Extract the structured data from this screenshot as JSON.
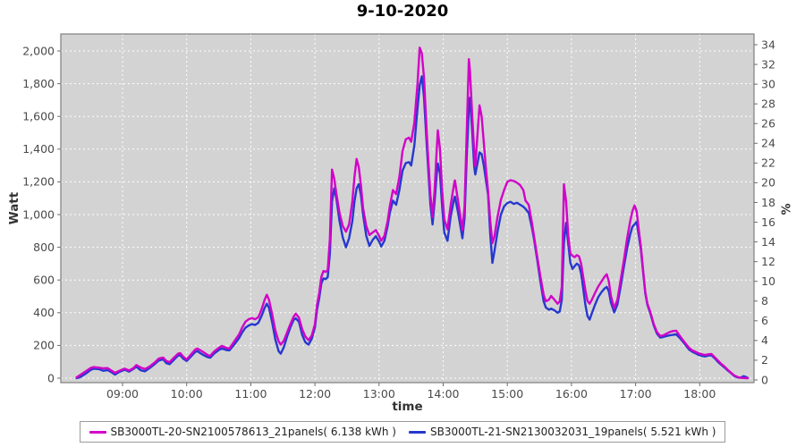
{
  "title": "9-10-2020",
  "axes": {
    "left": {
      "title": "Watt",
      "tick_labels": [
        "0",
        "200",
        "400",
        "600",
        "800",
        "1,000",
        "1,200",
        "1,400",
        "1,600",
        "1,800",
        "2,000"
      ],
      "tick_values": [
        0,
        200,
        400,
        600,
        800,
        1000,
        1200,
        1400,
        1600,
        1800,
        2000
      ]
    },
    "right": {
      "title": "%",
      "tick_labels": [
        "0",
        "2",
        "4",
        "6",
        "8",
        "10",
        "12",
        "14",
        "16",
        "18",
        "20",
        "22",
        "24",
        "26",
        "28",
        "30",
        "32",
        "34"
      ],
      "tick_values": [
        0,
        2,
        4,
        6,
        8,
        10,
        12,
        14,
        16,
        18,
        20,
        22,
        24,
        26,
        28,
        30,
        32,
        34
      ]
    },
    "bottom": {
      "title": "time",
      "tick_labels": [
        "09:00",
        "10:00",
        "11:00",
        "12:00",
        "13:00",
        "14:00",
        "15:00",
        "16:00",
        "17:00",
        "18:00"
      ],
      "tick_values_minutes": [
        540,
        600,
        660,
        720,
        780,
        840,
        900,
        960,
        1020,
        1080
      ]
    }
  },
  "legend": [
    {
      "label": "SB3000TL-20-SN2100578613_21panels( 6.138 kWh )",
      "color": "#d203c8"
    },
    {
      "label": "SB3000TL-21-SN2130032031_19panels( 5.521 kWh )",
      "color": "#2638cf"
    }
  ],
  "colors": {
    "plot_background": "#d3d3d3",
    "grid": "#ffffff",
    "plot_border": "#7f7f7f",
    "tick_label": "#4a4a4a",
    "series_1": "#d203c8",
    "series_2": "#2638cf"
  },
  "chart_data": {
    "type": "line",
    "title": "9-10-2020",
    "xlabel": "time",
    "ylabel": "Watt",
    "y2label": "%",
    "xlim_minutes": [
      482,
      1131
    ],
    "ylim": [
      0,
      2105
    ],
    "y2lim": [
      0,
      34
    ],
    "grid": true,
    "legend_position": "bottom",
    "x_unit": "minutes since midnight",
    "x": [
      497,
      500,
      505,
      510,
      513,
      518,
      522,
      526,
      530,
      533,
      537,
      542,
      546,
      550,
      553,
      557,
      561,
      565,
      570,
      574,
      578,
      581,
      584,
      588,
      592,
      594,
      597,
      600,
      604,
      608,
      610,
      613,
      616,
      620,
      622,
      626,
      630,
      633,
      637,
      640,
      645,
      649,
      652,
      655,
      658,
      661,
      664,
      667,
      670,
      673,
      675,
      677,
      680,
      683,
      686,
      688,
      691,
      694,
      697,
      700,
      702,
      705,
      708,
      711,
      714,
      717,
      720,
      722,
      724,
      726,
      728,
      730,
      732,
      734,
      736,
      738,
      740,
      743,
      746,
      749,
      752,
      755,
      757,
      759,
      761,
      763,
      765,
      768,
      771,
      774,
      777,
      780,
      782,
      785,
      788,
      790,
      793,
      796,
      799,
      802,
      805,
      808,
      810,
      813,
      816,
      818,
      820,
      822,
      825,
      828,
      830,
      832,
      834,
      835,
      837,
      839,
      841,
      844,
      847,
      850,
      851,
      854,
      858,
      860,
      862,
      864,
      865,
      867,
      869,
      870,
      872,
      874,
      876,
      878,
      880,
      882,
      884,
      886,
      888,
      891,
      894,
      897,
      900,
      903,
      906,
      909,
      912,
      915,
      917,
      920,
      923,
      925,
      928,
      931,
      934,
      936,
      939,
      941,
      944,
      947,
      949,
      951,
      953,
      955,
      957,
      959,
      961,
      963,
      965,
      967,
      969,
      971,
      973,
      975,
      977,
      979,
      982,
      985,
      988,
      991,
      993,
      995,
      997,
      1000,
      1003,
      1006,
      1009,
      1012,
      1015,
      1017,
      1019,
      1021,
      1023,
      1025,
      1027,
      1029,
      1031,
      1034,
      1037,
      1040,
      1043,
      1046,
      1049,
      1052,
      1055,
      1058,
      1061,
      1064,
      1067,
      1070,
      1073,
      1076,
      1079,
      1082,
      1085,
      1088,
      1091,
      1094,
      1097,
      1100,
      1103,
      1106,
      1109,
      1112,
      1115,
      1118,
      1121,
      1123,
      1125
    ],
    "series": [
      {
        "name": "SB3000TL-20-SN2100578613_21panels( 6.138 kWh )",
        "color": "#d203c8",
        "daily_energy_kwh": 6.138,
        "values": [
          5,
          18,
          40,
          62,
          68,
          64,
          60,
          62,
          45,
          33,
          45,
          58,
          47,
          60,
          80,
          65,
          56,
          70,
          95,
          120,
          126,
          105,
          98,
          125,
          150,
          153,
          130,
          115,
          145,
          175,
          181,
          170,
          158,
          140,
          137,
          165,
          185,
          197,
          185,
          181,
          230,
          268,
          310,
          345,
          360,
          368,
          360,
          372,
          420,
          480,
          510,
          480,
          390,
          290,
          225,
          205,
          230,
          280,
          330,
          375,
          394,
          370,
          300,
          255,
          232,
          260,
          330,
          450,
          520,
          620,
          655,
          650,
          660,
          850,
          1275,
          1220,
          1130,
          1010,
          930,
          895,
          940,
          1080,
          1230,
          1340,
          1290,
          1180,
          1040,
          930,
          875,
          890,
          905,
          870,
          840,
          870,
          960,
          1050,
          1150,
          1125,
          1230,
          1390,
          1460,
          1470,
          1445,
          1560,
          1800,
          2020,
          1985,
          1840,
          1450,
          1120,
          985,
          1150,
          1400,
          1515,
          1400,
          1150,
          970,
          910,
          1060,
          1180,
          1209,
          1080,
          905,
          1050,
          1500,
          1950,
          1880,
          1620,
          1380,
          1295,
          1480,
          1668,
          1600,
          1440,
          1280,
          1140,
          960,
          825,
          870,
          990,
          1090,
          1150,
          1200,
          1210,
          1205,
          1195,
          1180,
          1150,
          1085,
          1060,
          950,
          865,
          740,
          620,
          510,
          470,
          480,
          503,
          480,
          455,
          470,
          560,
          1185,
          1080,
          870,
          762,
          748,
          740,
          752,
          745,
          700,
          620,
          540,
          472,
          455,
          478,
          520,
          560,
          590,
          620,
          635,
          590,
          500,
          428,
          480,
          600,
          720,
          850,
          960,
          1020,
          1056,
          1020,
          905,
          800,
          660,
          528,
          458,
          400,
          330,
          282,
          258,
          262,
          272,
          282,
          288,
          290,
          262,
          235,
          210,
          185,
          170,
          162,
          152,
          146,
          142,
          146,
          148,
          128,
          108,
          88,
          72,
          52,
          35,
          18,
          8,
          3,
          1,
          0,
          0
        ]
      },
      {
        "name": "SB3000TL-21-SN2130032031_19panels( 5.521 kWh )",
        "color": "#2638cf",
        "daily_energy_kwh": 5.521,
        "values": [
          0,
          5,
          25,
          50,
          58,
          55,
          45,
          50,
          35,
          22,
          38,
          52,
          40,
          55,
          70,
          48,
          42,
          60,
          85,
          108,
          115,
          92,
          85,
          112,
          138,
          140,
          118,
          105,
          132,
          160,
          165,
          152,
          140,
          128,
          125,
          152,
          172,
          182,
          172,
          170,
          210,
          245,
          280,
          308,
          322,
          330,
          325,
          338,
          380,
          430,
          455,
          430,
          340,
          235,
          165,
          150,
          190,
          255,
          310,
          355,
          366,
          345,
          265,
          220,
          205,
          240,
          310,
          420,
          490,
          580,
          610,
          605,
          618,
          760,
          1080,
          1160,
          1100,
          960,
          860,
          800,
          855,
          960,
          1080,
          1160,
          1185,
          1120,
          1000,
          870,
          808,
          845,
          868,
          835,
          805,
          840,
          930,
          1010,
          1085,
          1060,
          1150,
          1270,
          1315,
          1320,
          1300,
          1420,
          1650,
          1790,
          1845,
          1720,
          1380,
          1060,
          940,
          1080,
          1250,
          1312,
          1250,
          1050,
          890,
          840,
          990,
          1090,
          1110,
          1010,
          855,
          980,
          1350,
          1650,
          1715,
          1520,
          1290,
          1245,
          1310,
          1380,
          1370,
          1300,
          1210,
          1120,
          880,
          705,
          780,
          900,
          1000,
          1050,
          1070,
          1078,
          1065,
          1072,
          1060,
          1048,
          1035,
          1010,
          920,
          848,
          720,
          590,
          470,
          432,
          418,
          425,
          415,
          400,
          408,
          480,
          830,
          950,
          820,
          705,
          668,
          685,
          700,
          690,
          640,
          550,
          450,
          380,
          358,
          395,
          448,
          495,
          525,
          548,
          558,
          530,
          460,
          402,
          450,
          560,
          680,
          790,
          880,
          925,
          940,
          955,
          870,
          782,
          650,
          520,
          450,
          392,
          322,
          272,
          248,
          252,
          258,
          262,
          265,
          268,
          248,
          225,
          200,
          175,
          162,
          152,
          142,
          136,
          133,
          138,
          140,
          122,
          100,
          82,
          66,
          48,
          32,
          15,
          5,
          2,
          12,
          8,
          1
        ]
      }
    ]
  }
}
